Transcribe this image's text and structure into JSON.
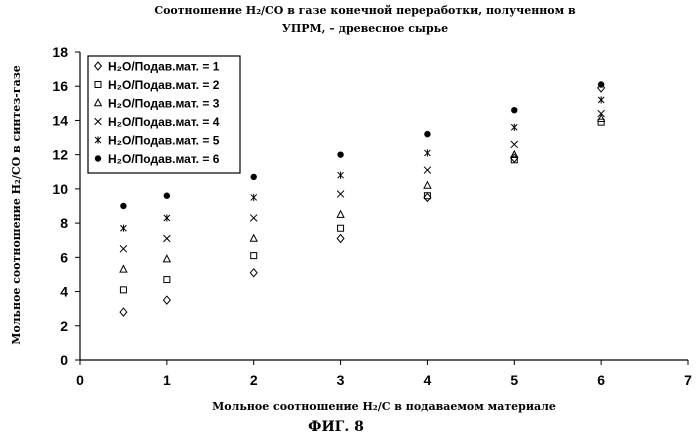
{
  "chart_data": {
    "type": "scatter",
    "title_lines": [
      "Соотношение H₂/CO в газе конечной переработки, полученном в",
      "УПРМ, – древесное сырье"
    ],
    "xlabel": "Мольное соотношение H₂/C в подаваемом материале",
    "ylabel": "Мольное соотношение H₂/CO в синтез-газе",
    "xlim": [
      0,
      7
    ],
    "ylim": [
      0,
      18
    ],
    "x_ticks": [
      "0",
      "1",
      "2",
      "3",
      "4",
      "5",
      "6",
      "7"
    ],
    "y_ticks": [
      "0",
      "2",
      "4",
      "6",
      "8",
      "10",
      "12",
      "14",
      "16",
      "18"
    ],
    "grid": false,
    "legend_position": "top-left",
    "series": [
      {
        "name": "H₂O/Подав.мат. = 1",
        "marker": "diamond-open",
        "points": [
          [
            0.5,
            2.8
          ],
          [
            1,
            3.5
          ],
          [
            2,
            5.1
          ],
          [
            3,
            7.1
          ],
          [
            4,
            9.5
          ],
          [
            5,
            11.8
          ],
          [
            6,
            15.9
          ]
        ]
      },
      {
        "name": "H₂O/Подав.мат. = 2",
        "marker": "square-open",
        "points": [
          [
            0.5,
            4.1
          ],
          [
            1,
            4.7
          ],
          [
            2,
            6.1
          ],
          [
            3,
            7.7
          ],
          [
            4,
            9.6
          ],
          [
            5,
            11.7
          ],
          [
            6,
            13.9
          ]
        ]
      },
      {
        "name": "H₂O/Подав.мат. = 3",
        "marker": "triangle-open",
        "points": [
          [
            0.5,
            5.3
          ],
          [
            1,
            5.9
          ],
          [
            2,
            7.1
          ],
          [
            3,
            8.5
          ],
          [
            4,
            10.2
          ],
          [
            5,
            12.0
          ],
          [
            6,
            14.1
          ]
        ]
      },
      {
        "name": "H₂O/Подав.мат. = 4",
        "marker": "x",
        "points": [
          [
            0.5,
            6.5
          ],
          [
            1,
            7.1
          ],
          [
            2,
            8.3
          ],
          [
            3,
            9.7
          ],
          [
            4,
            11.1
          ],
          [
            5,
            12.6
          ],
          [
            6,
            14.4
          ]
        ]
      },
      {
        "name": "H₂O/Подав.мат. = 5",
        "marker": "asterisk",
        "points": [
          [
            0.5,
            7.7
          ],
          [
            1,
            8.3
          ],
          [
            2,
            9.5
          ],
          [
            3,
            10.8
          ],
          [
            4,
            12.1
          ],
          [
            5,
            13.6
          ],
          [
            6,
            15.2
          ]
        ]
      },
      {
        "name": "H₂O/Подав.мат. = 6",
        "marker": "circle-filled",
        "points": [
          [
            0.5,
            9.0
          ],
          [
            1,
            9.6
          ],
          [
            2,
            10.7
          ],
          [
            3,
            12.0
          ],
          [
            4,
            13.2
          ],
          [
            5,
            14.6
          ],
          [
            6,
            16.1
          ]
        ]
      }
    ]
  },
  "figure_caption": "ФИГ. 8"
}
